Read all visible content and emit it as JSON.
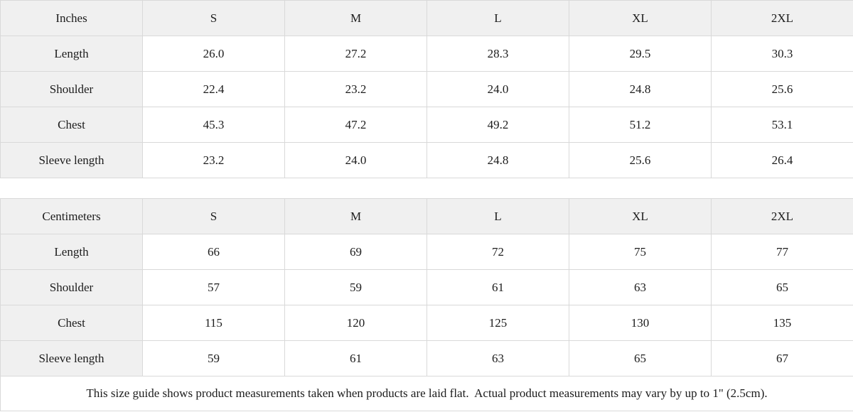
{
  "colors": {
    "header_bg": "#f0f0f0",
    "border": "#d9d9d9",
    "text": "#1c1c1c"
  },
  "inches": {
    "unit_label": "Inches",
    "columns": [
      "S",
      "M",
      "L",
      "XL",
      "2XL"
    ],
    "rows": [
      {
        "label": "Length",
        "values": [
          "26.0",
          "27.2",
          "28.3",
          "29.5",
          "30.3"
        ]
      },
      {
        "label": "Shoulder",
        "values": [
          "22.4",
          "23.2",
          "24.0",
          "24.8",
          "25.6"
        ]
      },
      {
        "label": "Chest",
        "values": [
          "45.3",
          "47.2",
          "49.2",
          "51.2",
          "53.1"
        ]
      },
      {
        "label": "Sleeve length",
        "values": [
          "23.2",
          "24.0",
          "24.8",
          "25.6",
          "26.4"
        ]
      }
    ]
  },
  "centimeters": {
    "unit_label": "Centimeters",
    "columns": [
      "S",
      "M",
      "L",
      "XL",
      "2XL"
    ],
    "rows": [
      {
        "label": "Length",
        "values": [
          "66",
          "69",
          "72",
          "75",
          "77"
        ]
      },
      {
        "label": "Shoulder",
        "values": [
          "57",
          "59",
          "61",
          "63",
          "65"
        ]
      },
      {
        "label": "Chest",
        "values": [
          "115",
          "120",
          "125",
          "130",
          "135"
        ]
      },
      {
        "label": "Sleeve length",
        "values": [
          "59",
          "61",
          "63",
          "65",
          "67"
        ]
      }
    ]
  },
  "footer": {
    "note": "This size guide shows product measurements taken when products are laid flat.  Actual product measurements may vary by up to 1\" (2.5cm)."
  }
}
